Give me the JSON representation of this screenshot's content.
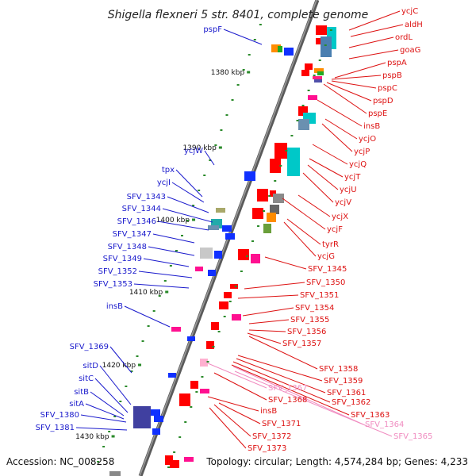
{
  "title": "Shigella flexneri 5 str. 8401, complete genome",
  "accession": "Accession: NC_008258",
  "summary": "Topology: circular; Length: 4,574,284 bp; Genes: 4,233",
  "colors": {
    "left_label": "#1a1acc",
    "right_label": "#dd1111",
    "pink_label": "#f08cc0",
    "tick": "#2a8a2a"
  },
  "scale_marks": [
    "1380 kbp",
    "1390 kbp",
    "1400 kbp",
    "1410 kbp",
    "1420 kbp",
    "1430 kbp"
  ],
  "left_labels": [
    "pspF",
    "ycjW",
    "tpx",
    "ycjI",
    "SFV_1343",
    "SFV_1344",
    "SFV_1346",
    "SFV_1347",
    "SFV_1348",
    "SFV_1349",
    "SFV_1352",
    "SFV_1353",
    "insB",
    "SFV_1369",
    "sitD",
    "sitC",
    "sitB",
    "sitA",
    "SFV_1380",
    "SFV_1381"
  ],
  "right_labels": [
    "ycjC",
    "aldH",
    "ordL",
    "goaG",
    "pspA",
    "pspB",
    "pspC",
    "pspD",
    "pspE",
    "insB",
    "ycjO",
    "ycjP",
    "ycjQ",
    "ycjT",
    "ycjU",
    "ycjV",
    "ycjX",
    "ycjF",
    "tyrR",
    "ycjG",
    "SFV_1345",
    "SFV_1350",
    "SFV_1351",
    "SFV_1354",
    "SFV_1355",
    "SFV_1356",
    "SFV_1357",
    "SFV_1358",
    "SFV_1359",
    "SFV_1361",
    "SFV_1362",
    "SFV_1363",
    "insB",
    "SFV_1368",
    "SFV_1371",
    "SFV_1372",
    "SFV_1373"
  ],
  "pink_labels": [
    "SFV_1367",
    "SFV_1364",
    "SFV_1365"
  ]
}
